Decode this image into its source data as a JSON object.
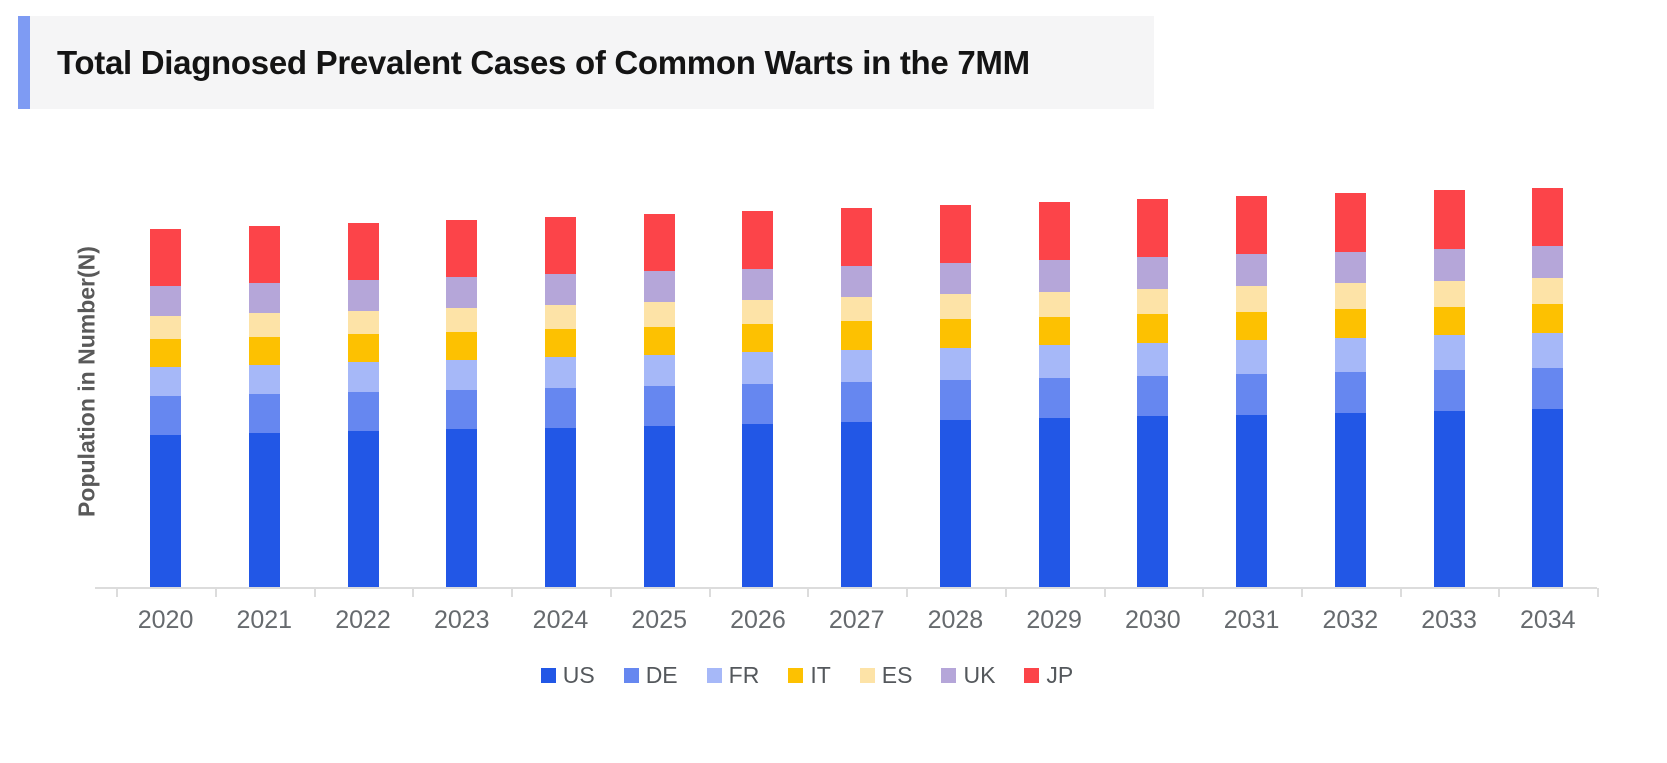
{
  "title_bar": {
    "text": "Total Diagnosed Prevalent Cases of Common Warts in the 7MM",
    "accent_color": "#7e9bf3",
    "background_color": "#f5f5f6"
  },
  "chart_data": {
    "type": "bar",
    "stacked": true,
    "title": "Total Diagnosed Prevalent Cases of Common Warts in the 7MM",
    "xlabel": "",
    "ylabel": "Population in Number(N)",
    "legend_position": "bottom",
    "grid": false,
    "y_axis_tick_labels_shown": false,
    "units": "relative height in px (chart displays no numeric y-axis scale)",
    "categories": [
      "2020",
      "2021",
      "2022",
      "2023",
      "2024",
      "2025",
      "2026",
      "2027",
      "2028",
      "2029",
      "2030",
      "2031",
      "2032",
      "2033",
      "2034"
    ],
    "series": [
      {
        "name": "US",
        "color": "#2257e6",
        "values": [
          153,
          154.9,
          156.7,
          158.6,
          160.4,
          162.3,
          164.1,
          166,
          167.9,
          169.7,
          171.6,
          173.4,
          175.3,
          177.1,
          179
        ]
      },
      {
        "name": "DE",
        "color": "#6687f0",
        "values": [
          39,
          39.1,
          39.3,
          39.4,
          39.6,
          39.7,
          39.9,
          40,
          40.1,
          40.3,
          40.4,
          40.6,
          40.7,
          40.9,
          41
        ]
      },
      {
        "name": "FR",
        "color": "#a6b8f8",
        "values": [
          29,
          29.4,
          29.9,
          30.3,
          30.7,
          31.1,
          31.6,
          32,
          32.4,
          32.9,
          33.3,
          33.7,
          34.1,
          34.6,
          35
        ]
      },
      {
        "name": "IT",
        "color": "#fdc101",
        "values": [
          28,
          28.1,
          28.1,
          28.2,
          28.3,
          28.4,
          28.4,
          28.5,
          28.6,
          28.6,
          28.7,
          28.8,
          28.9,
          28.9,
          29
        ]
      },
      {
        "name": "ES",
        "color": "#fde3a7",
        "values": [
          23,
          23.2,
          23.4,
          23.6,
          23.9,
          24.1,
          24.3,
          24.5,
          24.7,
          24.9,
          25.1,
          25.4,
          25.6,
          25.8,
          26
        ]
      },
      {
        "name": "UK",
        "color": "#b5a6d9",
        "values": [
          30.5,
          30.6,
          30.7,
          30.8,
          30.9,
          31,
          31.1,
          31.3,
          31.4,
          31.5,
          31.6,
          31.7,
          31.8,
          31.9,
          32
        ]
      },
      {
        "name": "JP",
        "color": "#fc4449",
        "values": [
          57,
          57.1,
          57.2,
          57.3,
          57.4,
          57.5,
          57.6,
          57.8,
          57.9,
          58,
          58.1,
          58.2,
          58.3,
          58.4,
          58.5
        ]
      }
    ],
    "axis_color": "#dcdcdc",
    "tick_label_color": "#666a6e"
  }
}
